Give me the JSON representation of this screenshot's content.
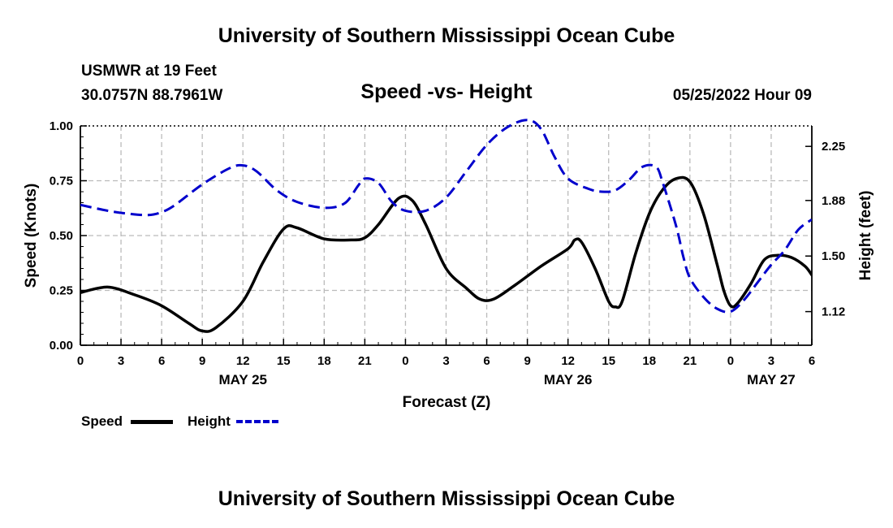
{
  "header": {
    "title": "University of Southern Mississippi Ocean Cube",
    "station": "USMWR at 19 Feet",
    "coords": "30.0757N  88.7961W",
    "subtitle": "Speed -vs- Height",
    "datetime": "05/25/2022 Hour 09"
  },
  "footer": {
    "title": "University of Southern Mississippi Ocean Cube"
  },
  "legend": {
    "speed_label": "Speed",
    "height_label": "Height",
    "speed_color": "#000000",
    "height_color": "#0000cc"
  },
  "chart_data": {
    "type": "line",
    "x_label": "Forecast (Z)",
    "y_label": "Speed (Knots)",
    "y2_label": "Height (feet)",
    "x_range": [
      0,
      54
    ],
    "y_range": [
      0,
      1
    ],
    "y2_range": [
      0.89,
      2.39
    ],
    "x_ticks": [
      {
        "x": 0,
        "label": "0"
      },
      {
        "x": 3,
        "label": "3"
      },
      {
        "x": 6,
        "label": "6"
      },
      {
        "x": 9,
        "label": "9"
      },
      {
        "x": 12,
        "label": "12"
      },
      {
        "x": 15,
        "label": "15"
      },
      {
        "x": 18,
        "label": "18"
      },
      {
        "x": 21,
        "label": "21"
      },
      {
        "x": 24,
        "label": "0"
      },
      {
        "x": 27,
        "label": "3"
      },
      {
        "x": 30,
        "label": "6"
      },
      {
        "x": 33,
        "label": "9"
      },
      {
        "x": 36,
        "label": "12"
      },
      {
        "x": 39,
        "label": "15"
      },
      {
        "x": 42,
        "label": "18"
      },
      {
        "x": 45,
        "label": "21"
      },
      {
        "x": 48,
        "label": "0"
      },
      {
        "x": 51,
        "label": "3"
      },
      {
        "x": 54,
        "label": "6"
      }
    ],
    "date_labels": [
      {
        "x": 12,
        "label": "MAY 25"
      },
      {
        "x": 36,
        "label": "MAY 26"
      },
      {
        "x": 51,
        "label": "MAY 27"
      }
    ],
    "y_ticks": [
      {
        "value": 0.0,
        "label": "0.00"
      },
      {
        "value": 0.25,
        "label": "0.25"
      },
      {
        "value": 0.5,
        "label": "0.50"
      },
      {
        "value": 0.75,
        "label": "0.75"
      },
      {
        "value": 1.0,
        "label": "1.00"
      }
    ],
    "y2_ticks": [
      {
        "value": 1.12,
        "label": "1.12"
      },
      {
        "value": 1.5,
        "label": "1.50"
      },
      {
        "value": 1.88,
        "label": "1.88"
      },
      {
        "value": 2.25,
        "label": "2.25"
      }
    ],
    "series": [
      {
        "name": "Speed",
        "axis": "left",
        "color": "#000000",
        "dash": false,
        "points": [
          [
            0,
            0.24
          ],
          [
            2,
            0.265
          ],
          [
            4,
            0.23
          ],
          [
            6,
            0.18
          ],
          [
            8,
            0.1
          ],
          [
            9,
            0.065
          ],
          [
            10,
            0.08
          ],
          [
            12,
            0.2
          ],
          [
            13.5,
            0.38
          ],
          [
            15,
            0.53
          ],
          [
            16,
            0.535
          ],
          [
            18,
            0.485
          ],
          [
            20,
            0.48
          ],
          [
            21,
            0.49
          ],
          [
            22,
            0.55
          ],
          [
            23.5,
            0.67
          ],
          [
            24.5,
            0.66
          ],
          [
            25.5,
            0.55
          ],
          [
            27,
            0.35
          ],
          [
            28.5,
            0.26
          ],
          [
            29.5,
            0.21
          ],
          [
            30.5,
            0.21
          ],
          [
            32,
            0.27
          ],
          [
            34,
            0.36
          ],
          [
            36,
            0.44
          ],
          [
            36.5,
            0.48
          ],
          [
            37,
            0.47
          ],
          [
            38,
            0.35
          ],
          [
            39,
            0.2
          ],
          [
            39.5,
            0.175
          ],
          [
            40,
            0.2
          ],
          [
            41,
            0.42
          ],
          [
            42,
            0.6
          ],
          [
            43,
            0.71
          ],
          [
            44,
            0.76
          ],
          [
            45,
            0.745
          ],
          [
            46,
            0.6
          ],
          [
            47,
            0.37
          ],
          [
            47.5,
            0.25
          ],
          [
            48,
            0.18
          ],
          [
            48.5,
            0.19
          ],
          [
            49.5,
            0.28
          ],
          [
            50.5,
            0.39
          ],
          [
            51.5,
            0.41
          ],
          [
            52.5,
            0.4
          ],
          [
            53.5,
            0.36
          ],
          [
            54,
            0.32
          ]
        ]
      },
      {
        "name": "Height",
        "axis": "right",
        "color": "#0000cc",
        "dash": true,
        "points": [
          [
            0,
            1.85
          ],
          [
            2,
            1.81
          ],
          [
            3.5,
            1.79
          ],
          [
            5,
            1.78
          ],
          [
            6,
            1.8
          ],
          [
            7,
            1.85
          ],
          [
            9,
            1.99
          ],
          [
            11,
            2.1
          ],
          [
            12,
            2.12
          ],
          [
            13,
            2.08
          ],
          [
            14.5,
            1.95
          ],
          [
            16,
            1.87
          ],
          [
            18,
            1.83
          ],
          [
            19.5,
            1.86
          ],
          [
            20.5,
            1.98
          ],
          [
            21,
            2.03
          ],
          [
            22,
            2.0
          ],
          [
            23,
            1.87
          ],
          [
            24,
            1.81
          ],
          [
            25.5,
            1.81
          ],
          [
            27,
            1.9
          ],
          [
            28.5,
            2.08
          ],
          [
            30,
            2.26
          ],
          [
            31.5,
            2.38
          ],
          [
            33,
            2.43
          ],
          [
            34,
            2.37
          ],
          [
            35,
            2.18
          ],
          [
            36,
            2.03
          ],
          [
            37.5,
            1.96
          ],
          [
            38.5,
            1.94
          ],
          [
            39.5,
            1.95
          ],
          [
            40.5,
            2.02
          ],
          [
            41.5,
            2.11
          ],
          [
            42.5,
            2.11
          ],
          [
            43,
            2.0
          ],
          [
            44,
            1.7
          ],
          [
            44.5,
            1.5
          ],
          [
            45,
            1.35
          ],
          [
            46,
            1.22
          ],
          [
            47,
            1.14
          ],
          [
            48,
            1.12
          ],
          [
            49,
            1.2
          ],
          [
            50,
            1.32
          ],
          [
            51,
            1.44
          ],
          [
            52,
            1.54
          ],
          [
            53,
            1.68
          ],
          [
            54,
            1.75
          ]
        ]
      }
    ]
  }
}
